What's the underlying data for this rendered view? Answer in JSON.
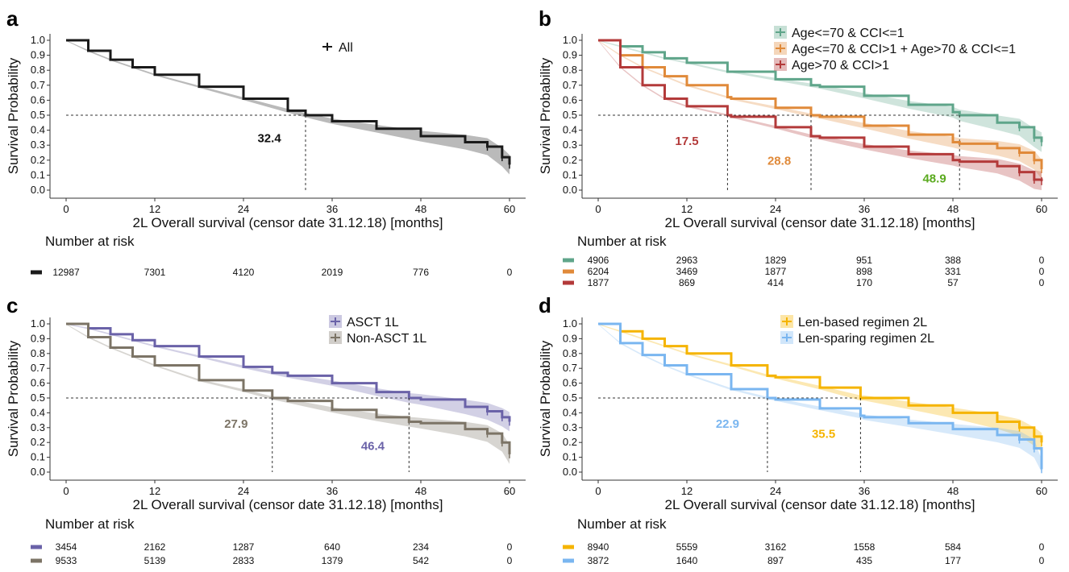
{
  "panels": [
    {
      "label": "a",
      "xlabel": "2L Overall survival (censor date 31.12.18) [months]",
      "ylabel": "Survival Probability",
      "xticks": [
        "0",
        "12",
        "24",
        "36",
        "48",
        "60"
      ],
      "yticks": [
        "0.0",
        "0.1",
        "0.2",
        "0.3",
        "0.4",
        "0.5",
        "0.6",
        "0.7",
        "0.8",
        "0.9",
        "1.0"
      ],
      "risk_title": "Number at risk",
      "series": [
        {
          "name": "All",
          "color": "#1a1a1a",
          "median": "32.4",
          "risk": [
            "12987",
            "7301",
            "4120",
            "2019",
            "776",
            "0"
          ]
        }
      ]
    },
    {
      "label": "b",
      "xlabel": "2L Overall survival (censor date 31.12.18) [months]",
      "ylabel": "Survival Probability",
      "xticks": [
        "0",
        "12",
        "24",
        "36",
        "48",
        "60"
      ],
      "yticks": [
        "0.0",
        "0.1",
        "0.2",
        "0.3",
        "0.4",
        "0.5",
        "0.6",
        "0.7",
        "0.8",
        "0.9",
        "1.0"
      ],
      "risk_title": "Number at risk",
      "series": [
        {
          "name": "Age<=70 & CCI<=1",
          "color": "#5fa58a",
          "median": "48.9",
          "median_color": "#5aaa1e",
          "risk": [
            "4906",
            "2963",
            "1829",
            "951",
            "388",
            "0"
          ]
        },
        {
          "name": "Age<=70 & CCI>1 + Age>70 & CCI<=1",
          "color": "#e08a3a",
          "median": "28.8",
          "risk": [
            "6204",
            "3469",
            "1877",
            "898",
            "331",
            "0"
          ]
        },
        {
          "name": "Age>70 & CCI>1",
          "color": "#b33a3a",
          "median": "17.5",
          "risk": [
            "1877",
            "869",
            "414",
            "170",
            "57",
            "0"
          ]
        }
      ]
    },
    {
      "label": "c",
      "xlabel": "2L Overall survival (censor date 31.12.18) [months]",
      "ylabel": "Survival Probability",
      "xticks": [
        "0",
        "12",
        "24",
        "36",
        "48",
        "60"
      ],
      "yticks": [
        "0.0",
        "0.1",
        "0.2",
        "0.3",
        "0.4",
        "0.5",
        "0.6",
        "0.7",
        "0.8",
        "0.9",
        "1.0"
      ],
      "risk_title": "Number at risk",
      "series": [
        {
          "name": "ASCT 1L",
          "color": "#6a62a8",
          "median": "46.4",
          "risk": [
            "3454",
            "2162",
            "1287",
            "640",
            "234",
            "0"
          ]
        },
        {
          "name": "Non-ASCT 1L",
          "color": "#7c7466",
          "median": "27.9",
          "risk": [
            "9533",
            "5139",
            "2833",
            "1379",
            "542",
            "0"
          ]
        }
      ]
    },
    {
      "label": "d",
      "xlabel": "2L Overall survival (censor date 31.12.18) [months]",
      "ylabel": "Survival Probability",
      "xticks": [
        "0",
        "12",
        "24",
        "36",
        "48",
        "60"
      ],
      "yticks": [
        "0.0",
        "0.1",
        "0.2",
        "0.3",
        "0.4",
        "0.5",
        "0.6",
        "0.7",
        "0.8",
        "0.9",
        "1.0"
      ],
      "risk_title": "Number at risk",
      "series": [
        {
          "name": "Len-based regimen 2L",
          "color": "#f5b400",
          "median": "35.5",
          "risk": [
            "8940",
            "5559",
            "3162",
            "1558",
            "584",
            "0"
          ]
        },
        {
          "name": "Len-sparing regimen 2L",
          "color": "#7ab6f0",
          "median": "22.9",
          "risk": [
            "3872",
            "1640",
            "897",
            "435",
            "177",
            "0"
          ]
        }
      ]
    }
  ],
  "chart_data": [
    {
      "type": "line",
      "panel": "a",
      "xlabel": "2L Overall survival (censor date 31.12.18) [months]",
      "ylabel": "Survival Probability",
      "xlim": [
        0,
        60
      ],
      "ylim": [
        0,
        1
      ],
      "x": [
        0,
        3,
        6,
        9,
        12,
        18,
        24,
        30,
        32.4,
        36,
        42,
        48,
        54,
        57,
        59,
        60
      ],
      "series": [
        {
          "name": "All",
          "median": 32.4,
          "values": [
            1.0,
            0.93,
            0.87,
            0.82,
            0.77,
            0.69,
            0.61,
            0.53,
            0.5,
            0.46,
            0.41,
            0.36,
            0.32,
            0.29,
            0.22,
            0.17
          ]
        }
      ],
      "number_at_risk": {
        "x": [
          0,
          12,
          24,
          36,
          48,
          60
        ],
        "All": [
          12987,
          7301,
          4120,
          2019,
          776,
          0
        ]
      }
    },
    {
      "type": "line",
      "panel": "b",
      "xlabel": "2L Overall survival (censor date 31.12.18) [months]",
      "ylabel": "Survival Probability",
      "xlim": [
        0,
        60
      ],
      "ylim": [
        0,
        1
      ],
      "x": [
        0,
        3,
        6,
        9,
        12,
        17.5,
        18,
        24,
        28.8,
        30,
        36,
        42,
        48,
        48.9,
        54,
        57,
        59,
        60
      ],
      "series": [
        {
          "name": "Age<=70 & CCI<=1",
          "median": 48.9,
          "values": [
            1.0,
            0.96,
            0.92,
            0.88,
            0.85,
            0.79,
            0.79,
            0.74,
            0.7,
            0.69,
            0.63,
            0.57,
            0.52,
            0.5,
            0.45,
            0.42,
            0.35,
            0.32
          ]
        },
        {
          "name": "Age<=70 & CCI>1 + Age>70 & CCI<=1",
          "median": 28.8,
          "values": [
            1.0,
            0.9,
            0.82,
            0.76,
            0.7,
            0.62,
            0.61,
            0.55,
            0.5,
            0.49,
            0.43,
            0.37,
            0.32,
            0.31,
            0.28,
            0.25,
            0.2,
            0.14
          ]
        },
        {
          "name": "Age>70 & CCI>1",
          "median": 17.5,
          "values": [
            1.0,
            0.82,
            0.7,
            0.61,
            0.56,
            0.5,
            0.49,
            0.42,
            0.36,
            0.35,
            0.29,
            0.24,
            0.2,
            0.19,
            0.16,
            0.12,
            0.07,
            0.06
          ]
        }
      ],
      "number_at_risk": {
        "x": [
          0,
          12,
          24,
          36,
          48,
          60
        ],
        "Age<=70 & CCI<=1": [
          4906,
          2963,
          1829,
          951,
          388,
          0
        ],
        "Age<=70 & CCI>1 + Age>70 & CCI<=1": [
          6204,
          3469,
          1877,
          898,
          331,
          0
        ],
        "Age>70 & CCI>1": [
          1877,
          869,
          414,
          170,
          57,
          0
        ]
      }
    },
    {
      "type": "line",
      "panel": "c",
      "xlabel": "2L Overall survival (censor date 31.12.18) [months]",
      "ylabel": "Survival Probability",
      "xlim": [
        0,
        60
      ],
      "ylim": [
        0,
        1
      ],
      "x": [
        0,
        3,
        6,
        9,
        12,
        18,
        24,
        27.9,
        30,
        36,
        42,
        46.4,
        48,
        54,
        57,
        59,
        60
      ],
      "series": [
        {
          "name": "ASCT 1L",
          "median": 46.4,
          "values": [
            1.0,
            0.97,
            0.93,
            0.89,
            0.85,
            0.78,
            0.71,
            0.67,
            0.65,
            0.6,
            0.54,
            0.5,
            0.49,
            0.44,
            0.41,
            0.37,
            0.34
          ]
        },
        {
          "name": "Non-ASCT 1L",
          "median": 27.9,
          "values": [
            1.0,
            0.91,
            0.84,
            0.78,
            0.72,
            0.62,
            0.55,
            0.5,
            0.48,
            0.42,
            0.37,
            0.34,
            0.33,
            0.29,
            0.26,
            0.2,
            0.12
          ]
        }
      ],
      "number_at_risk": {
        "x": [
          0,
          12,
          24,
          36,
          48,
          60
        ],
        "ASCT 1L": [
          3454,
          2162,
          1287,
          640,
          234,
          0
        ],
        "Non-ASCT 1L": [
          9533,
          5139,
          2833,
          1379,
          542,
          0
        ]
      }
    },
    {
      "type": "line",
      "panel": "d",
      "xlabel": "2L Overall survival (censor date 31.12.18) [months]",
      "ylabel": "Survival Probability",
      "xlim": [
        0,
        60
      ],
      "ylim": [
        0,
        1
      ],
      "x": [
        0,
        3,
        6,
        9,
        12,
        18,
        22.9,
        24,
        30,
        35.5,
        36,
        42,
        48,
        54,
        57,
        59,
        60
      ],
      "series": [
        {
          "name": "Len-based regimen 2L",
          "median": 35.5,
          "values": [
            1.0,
            0.95,
            0.9,
            0.85,
            0.8,
            0.72,
            0.65,
            0.64,
            0.57,
            0.5,
            0.5,
            0.45,
            0.4,
            0.34,
            0.3,
            0.24,
            0.2
          ]
        },
        {
          "name": "Len-sparing regimen 2L",
          "median": 22.9,
          "values": [
            1.0,
            0.87,
            0.79,
            0.72,
            0.66,
            0.56,
            0.5,
            0.49,
            0.43,
            0.38,
            0.37,
            0.33,
            0.29,
            0.25,
            0.22,
            0.16,
            0.02
          ]
        }
      ],
      "number_at_risk": {
        "x": [
          0,
          12,
          24,
          36,
          48,
          60
        ],
        "Len-based regimen 2L": [
          8940,
          5559,
          3162,
          1558,
          584,
          0
        ],
        "Len-sparing regimen 2L": [
          3872,
          1640,
          897,
          435,
          177,
          0
        ]
      }
    }
  ]
}
